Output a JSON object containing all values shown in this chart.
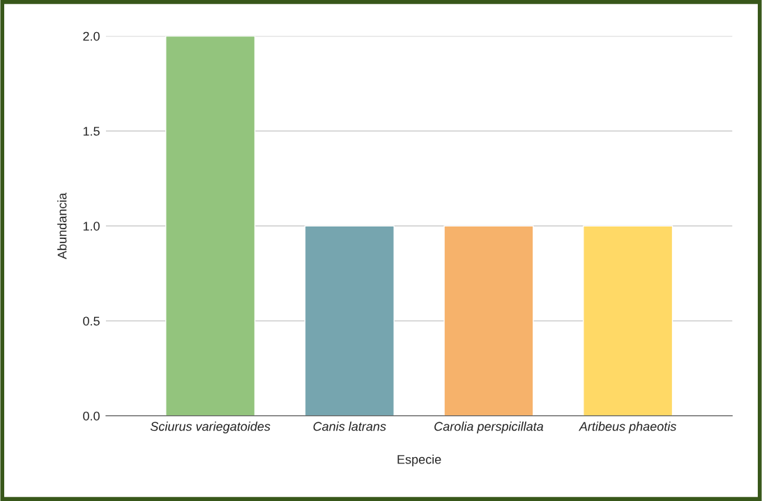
{
  "chart_data": {
    "type": "bar",
    "xlabel": "Especie",
    "ylabel": "Abundancia",
    "categories": [
      "Sciurus variegatoides",
      "Canis latrans",
      "Carolia perspicillata",
      "Artibeus phaeotis"
    ],
    "values": [
      2,
      1,
      1,
      1
    ],
    "colors": [
      "#93c47d",
      "#76a5af",
      "#f6b26b",
      "#ffd966"
    ],
    "ylim": [
      0,
      2
    ],
    "yticks": [
      {
        "value": 0,
        "label": "0.0"
      },
      {
        "value": 0.5,
        "label": "0.5"
      },
      {
        "value": 1,
        "label": "1.0"
      },
      {
        "value": 1.5,
        "label": "1.5"
      },
      {
        "value": 2,
        "label": "2.0"
      }
    ],
    "grid": "y"
  }
}
